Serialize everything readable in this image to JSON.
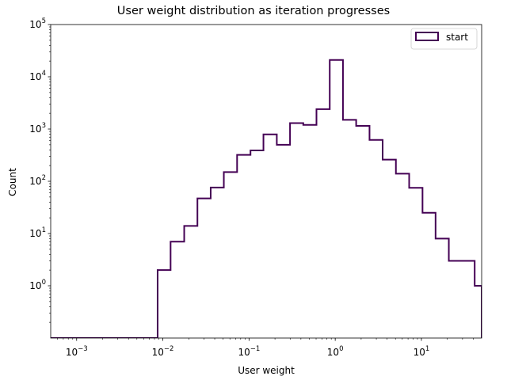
{
  "chart_data": {
    "type": "histogram",
    "title": "User weight distribution as iteration progresses",
    "xlabel": "User weight",
    "ylabel": "Count",
    "x_scale": "log",
    "y_scale": "log",
    "xlim": [
      0.0005,
      50
    ],
    "ylim": [
      0.1,
      100000
    ],
    "grid": false,
    "legend": {
      "placement": "top-right"
    },
    "x_ticks": [
      {
        "value": 0.001,
        "base": "10",
        "exp": "−3"
      },
      {
        "value": 0.01,
        "base": "10",
        "exp": "−2"
      },
      {
        "value": 0.1,
        "base": "10",
        "exp": "−1"
      },
      {
        "value": 1,
        "base": "10",
        "exp": "0"
      },
      {
        "value": 10,
        "base": "10",
        "exp": "1"
      }
    ],
    "y_ticks": [
      {
        "value": 1,
        "base": "10",
        "exp": "0"
      },
      {
        "value": 10,
        "base": "10",
        "exp": "1"
      },
      {
        "value": 100,
        "base": "10",
        "exp": "2"
      },
      {
        "value": 1000,
        "base": "10",
        "exp": "3"
      },
      {
        "value": 10000,
        "base": "10",
        "exp": "4"
      },
      {
        "value": 100000,
        "base": "10",
        "exp": "5"
      }
    ],
    "series": [
      {
        "name": "start",
        "color": "#440154",
        "bin_edges": [
          0.0005,
          0.0087,
          0.0123,
          0.0177,
          0.0252,
          0.0359,
          0.051,
          0.0727,
          0.104,
          0.147,
          0.21,
          0.299,
          0.426,
          0.606,
          0.864,
          1.23,
          1.75,
          2.5,
          3.55,
          5.06,
          7.21,
          10.3,
          14.6,
          20.8,
          41.5,
          50
        ],
        "counts": [
          0.1,
          2,
          7,
          14,
          47,
          76,
          150,
          320,
          390,
          790,
          500,
          1300,
          1200,
          2400,
          21000,
          1500,
          1150,
          620,
          260,
          140,
          75,
          25,
          8,
          3,
          1
        ]
      }
    ]
  }
}
